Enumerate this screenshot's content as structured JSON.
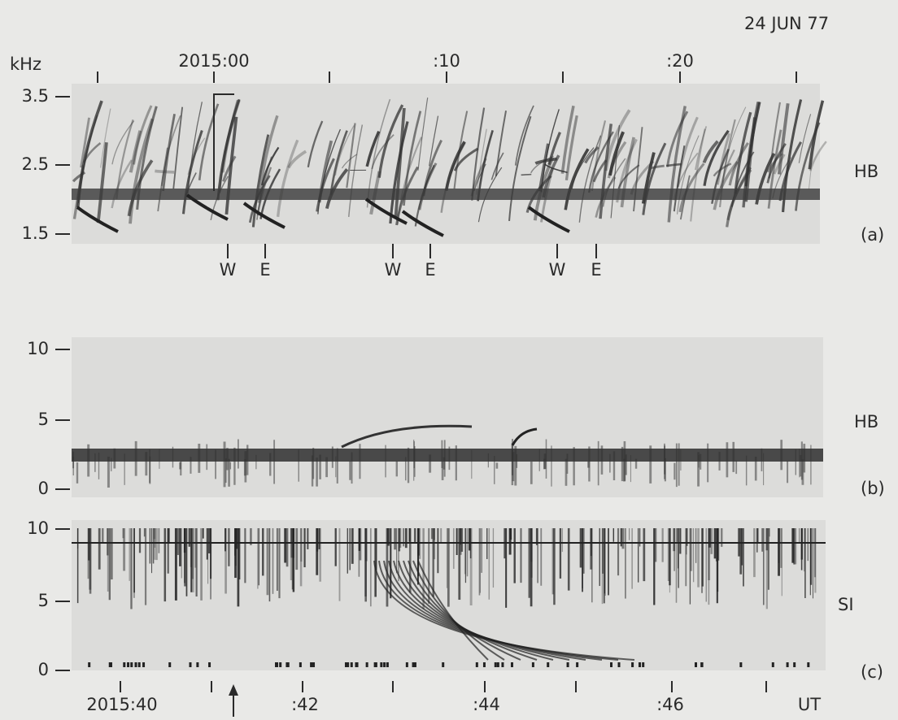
{
  "date": "24 JUN 77",
  "unit": "kHz",
  "top_time_labels": [
    "2015:00",
    ":10",
    ":20"
  ],
  "panels": [
    {
      "station": "HB",
      "label": "(a)",
      "y_labels": [
        "3.5",
        "2.5",
        "1.5"
      ],
      "markers": [
        "W",
        "E",
        "W",
        "E",
        "W",
        "E"
      ]
    },
    {
      "station": "HB",
      "label": "(b)",
      "y_labels": [
        "10",
        "5",
        "0"
      ]
    },
    {
      "station": "SI",
      "label": "(c)",
      "y_labels": [
        "10",
        "5",
        "0"
      ]
    }
  ],
  "bottom_time_labels": [
    "2015:40",
    ":42",
    ":44",
    ":46"
  ],
  "time_unit": "UT"
}
